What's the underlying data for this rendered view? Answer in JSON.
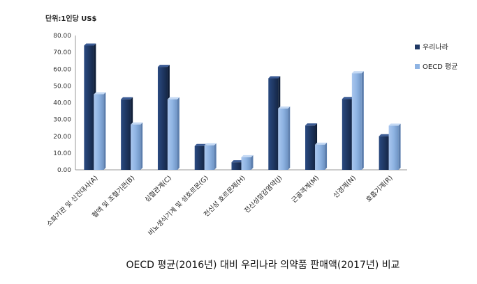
{
  "chart_data": {
    "type": "bar",
    "unit_label": "단위:1인당 US$",
    "categories": [
      "소화기관 및 신진대사(A)",
      "혈액 및 조혈기관(B)",
      "심혈관계(C)",
      "비뇨생식기계 및 성호르몬(G)",
      "전신성 호르몬제(H)",
      "전신성항감염약(J)",
      "근골격계(M)",
      "신경계(N)",
      "호흡기계(R)"
    ],
    "series": [
      {
        "name": "우리나라",
        "values": [
          74.0,
          42.0,
          61.3,
          14.2,
          4.5,
          54.5,
          26.4,
          42.2,
          20.0
        ]
      },
      {
        "name": "OECD 평균",
        "values": [
          45.0,
          27.0,
          42.0,
          14.6,
          7.5,
          36.5,
          15.0,
          57.5,
          26.3
        ]
      }
    ],
    "ylim": [
      0,
      80
    ],
    "yticks": [
      "0.00",
      "10.00",
      "20.00",
      "30.00",
      "40.00",
      "50.00",
      "60.00",
      "70.00",
      "80.00"
    ],
    "legend_position": "right",
    "colors": {
      "series1": "#1f3864",
      "series2": "#8fb4e3"
    },
    "caption": "OECD 평균(2016년) 대비 우리나라 의약품 판매액(2017년) 비교"
  }
}
